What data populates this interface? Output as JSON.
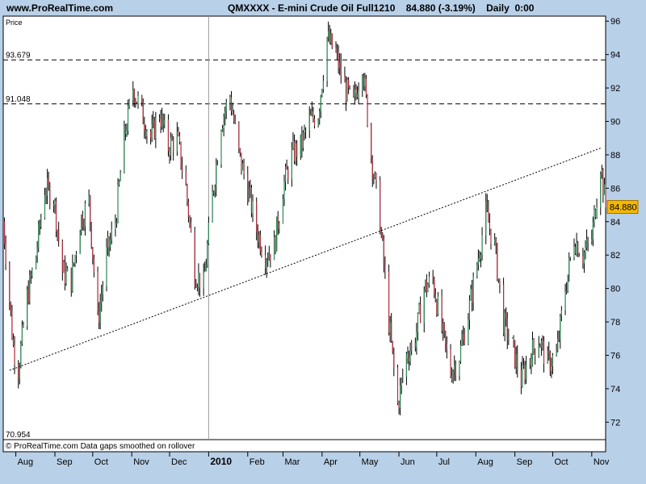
{
  "header": {
    "site_url": "www.ProRealTime.com",
    "instrument_line": "QMXXXX - E-mini Crude Oil Full1210    84.880 (-3.19%)    Daily  0:00"
  },
  "footer": {
    "credit": "© ProRealTime.com  Data gaps smoothed on rollover"
  },
  "colors": {
    "background": "#b8d0e8",
    "plot_background": "#ffffff",
    "up_candle": "#2e8b57",
    "down_candle": "#b03040",
    "price_tag": "#f5b800"
  },
  "chart_data": {
    "type": "candlestick",
    "title": "QMXXXX - E-mini Crude Oil Full1210",
    "ylabel": "Price",
    "ylim": [
      70.954,
      96.3
    ],
    "y_ticks": [
      "72",
      "74",
      "76",
      "78",
      "80",
      "82",
      "84",
      "86",
      "88",
      "90",
      "92",
      "94",
      "96"
    ],
    "x_ticks": [
      "Aug",
      "Sep",
      "Oct",
      "Nov",
      "Dec",
      "2010",
      "Feb",
      "Mar",
      "Apr",
      "May",
      "Jun",
      "Jul",
      "Aug",
      "Sep",
      "Oct",
      "Nov"
    ],
    "x_range": [
      "2009-07-22",
      "2010-11-12"
    ],
    "year_divider": "2010-01-01",
    "last_price": "84.880",
    "min_label": "70.954",
    "grid": false,
    "reference_lines": [
      {
        "label": "93.679",
        "value": 93.679,
        "style": "dashed"
      },
      {
        "label": "91.048",
        "value": 91.048,
        "style": "dashed"
      }
    ],
    "trendline": {
      "style": "dotted",
      "points": [
        [
          "2009-07-27",
          75.1
        ],
        [
          "2010-11-08",
          88.4
        ]
      ]
    },
    "series": [
      {
        "date": "2009-07-22",
        "close": 84.0
      },
      {
        "date": "2009-07-30",
        "close": 76.5
      },
      {
        "date": "2009-08-03",
        "close": 75.2
      },
      {
        "date": "2009-08-10",
        "close": 79.5
      },
      {
        "date": "2009-08-17",
        "close": 82.0
      },
      {
        "date": "2009-08-24",
        "close": 86.0
      },
      {
        "date": "2009-08-31",
        "close": 85.5
      },
      {
        "date": "2009-09-07",
        "close": 81.0
      },
      {
        "date": "2009-09-14",
        "close": 80.5
      },
      {
        "date": "2009-09-21",
        "close": 84.0
      },
      {
        "date": "2009-09-28",
        "close": 85.2
      },
      {
        "date": "2009-10-05",
        "close": 78.0
      },
      {
        "date": "2009-10-12",
        "close": 82.0
      },
      {
        "date": "2009-10-19",
        "close": 84.0
      },
      {
        "date": "2009-10-26",
        "close": 89.0
      },
      {
        "date": "2009-11-02",
        "close": 92.0
      },
      {
        "date": "2009-11-09",
        "close": 90.5
      },
      {
        "date": "2009-11-16",
        "close": 89.0
      },
      {
        "date": "2009-11-23",
        "close": 90.5
      },
      {
        "date": "2009-11-30",
        "close": 88.5
      },
      {
        "date": "2009-12-07",
        "close": 89.0
      },
      {
        "date": "2009-12-14",
        "close": 86.0
      },
      {
        "date": "2009-12-21",
        "close": 81.0
      },
      {
        "date": "2009-12-28",
        "close": 80.2
      },
      {
        "date": "2010-01-04",
        "close": 85.5
      },
      {
        "date": "2010-01-11",
        "close": 90.0
      },
      {
        "date": "2010-01-18",
        "close": 91.5
      },
      {
        "date": "2010-01-25",
        "close": 88.0
      },
      {
        "date": "2010-02-01",
        "close": 86.0
      },
      {
        "date": "2010-02-08",
        "close": 83.5
      },
      {
        "date": "2010-02-15",
        "close": 82.0
      },
      {
        "date": "2010-02-22",
        "close": 82.5
      },
      {
        "date": "2010-03-01",
        "close": 86.0
      },
      {
        "date": "2010-03-08",
        "close": 88.0
      },
      {
        "date": "2010-03-15",
        "close": 88.5
      },
      {
        "date": "2010-03-22",
        "close": 90.0
      },
      {
        "date": "2010-03-29",
        "close": 90.5
      },
      {
        "date": "2010-04-05",
        "close": 95.0
      },
      {
        "date": "2010-04-12",
        "close": 94.0
      },
      {
        "date": "2010-04-19",
        "close": 92.0
      },
      {
        "date": "2010-04-26",
        "close": 91.0
      },
      {
        "date": "2010-05-03",
        "close": 93.5
      },
      {
        "date": "2010-05-10",
        "close": 88.0
      },
      {
        "date": "2010-05-17",
        "close": 84.0
      },
      {
        "date": "2010-05-24",
        "close": 78.0
      },
      {
        "date": "2010-05-31",
        "close": 73.0
      },
      {
        "date": "2010-06-07",
        "close": 76.0
      },
      {
        "date": "2010-06-14",
        "close": 77.0
      },
      {
        "date": "2010-06-21",
        "close": 80.0
      },
      {
        "date": "2010-06-28",
        "close": 80.5
      },
      {
        "date": "2010-07-05",
        "close": 77.5
      },
      {
        "date": "2010-07-12",
        "close": 75.0
      },
      {
        "date": "2010-07-19",
        "close": 76.0
      },
      {
        "date": "2010-07-26",
        "close": 78.5
      },
      {
        "date": "2010-08-02",
        "close": 81.5
      },
      {
        "date": "2010-08-09",
        "close": 84.5
      },
      {
        "date": "2010-08-16",
        "close": 82.5
      },
      {
        "date": "2010-08-23",
        "close": 78.0
      },
      {
        "date": "2010-08-30",
        "close": 76.5
      },
      {
        "date": "2010-09-06",
        "close": 74.5
      },
      {
        "date": "2010-09-13",
        "close": 76.0
      },
      {
        "date": "2010-09-20",
        "close": 77.0
      },
      {
        "date": "2010-09-27",
        "close": 75.5
      },
      {
        "date": "2010-10-04",
        "close": 76.0
      },
      {
        "date": "2010-10-11",
        "close": 80.0
      },
      {
        "date": "2010-10-18",
        "close": 83.0
      },
      {
        "date": "2010-10-25",
        "close": 82.0
      },
      {
        "date": "2010-11-01",
        "close": 83.0
      },
      {
        "date": "2010-11-08",
        "close": 87.5
      },
      {
        "date": "2010-11-12",
        "close": 84.88
      }
    ]
  }
}
